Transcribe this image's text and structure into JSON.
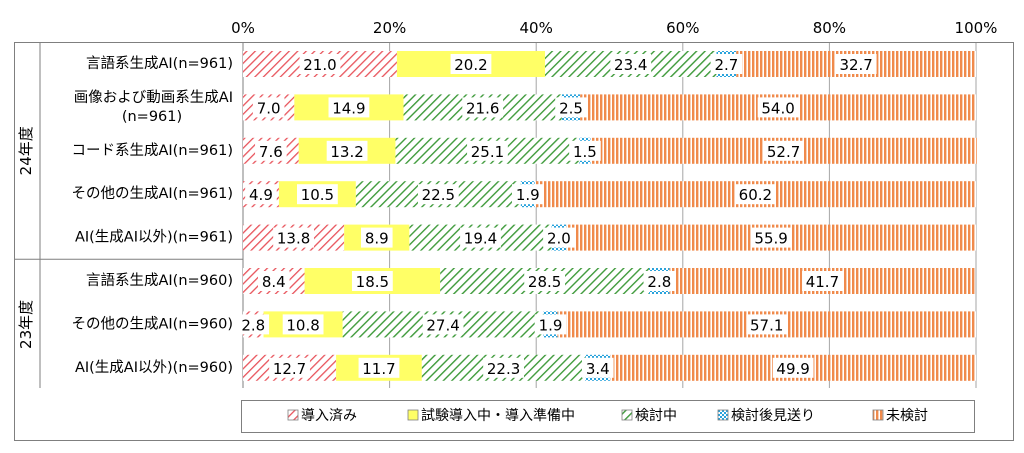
{
  "chart_data": {
    "type": "bar",
    "orientation": "horizontal",
    "stacked": true,
    "xlim": [
      0,
      100
    ],
    "x_ticks": [
      "0%",
      "20%",
      "40%",
      "60%",
      "80%",
      "100%"
    ],
    "grid": true,
    "legend_position": "bottom",
    "groups": [
      {
        "label": "24年度",
        "rows": [
          0,
          1,
          2,
          3,
          4
        ]
      },
      {
        "label": "23年度",
        "rows": [
          5,
          6,
          7
        ]
      }
    ],
    "categories": [
      [
        "言語系生成AI(n=961)"
      ],
      [
        "画像および動画系生成AI",
        "(n=961)"
      ],
      [
        "コード系生成AI(n=961)"
      ],
      [
        "その他の生成AI(n=961)"
      ],
      [
        "AI(生成AI以外)(n=961)"
      ],
      [
        "言語系生成AI(n=960)"
      ],
      [
        "その他の生成AI(n=960)"
      ],
      [
        "AI(生成AI以外)(n=960)"
      ]
    ],
    "series": [
      {
        "name": "導入済み",
        "color": "#e8525a",
        "pattern": "diag-red",
        "values": [
          21.0,
          7.0,
          7.6,
          4.9,
          13.8,
          8.4,
          2.8,
          12.7
        ]
      },
      {
        "name": "試験導入中・導入準備中",
        "color": "#ffff66",
        "pattern": "solid-yellow",
        "values": [
          20.2,
          14.9,
          13.2,
          10.5,
          8.9,
          18.5,
          10.8,
          11.7
        ]
      },
      {
        "name": "検討中",
        "color": "#3e9a3a",
        "pattern": "diag-green",
        "values": [
          23.4,
          21.6,
          25.1,
          22.5,
          19.4,
          28.5,
          27.4,
          22.3
        ]
      },
      {
        "name": "検討後見送り",
        "color": "#2aa3dc",
        "pattern": "dots-blue",
        "values": [
          2.7,
          2.5,
          1.5,
          1.9,
          2.0,
          2.8,
          1.9,
          3.4
        ]
      },
      {
        "name": "未検討",
        "color": "#f08a4b",
        "pattern": "vert-orange",
        "values": [
          32.7,
          54.0,
          52.7,
          60.2,
          55.9,
          41.7,
          57.1,
          49.9
        ]
      }
    ]
  }
}
